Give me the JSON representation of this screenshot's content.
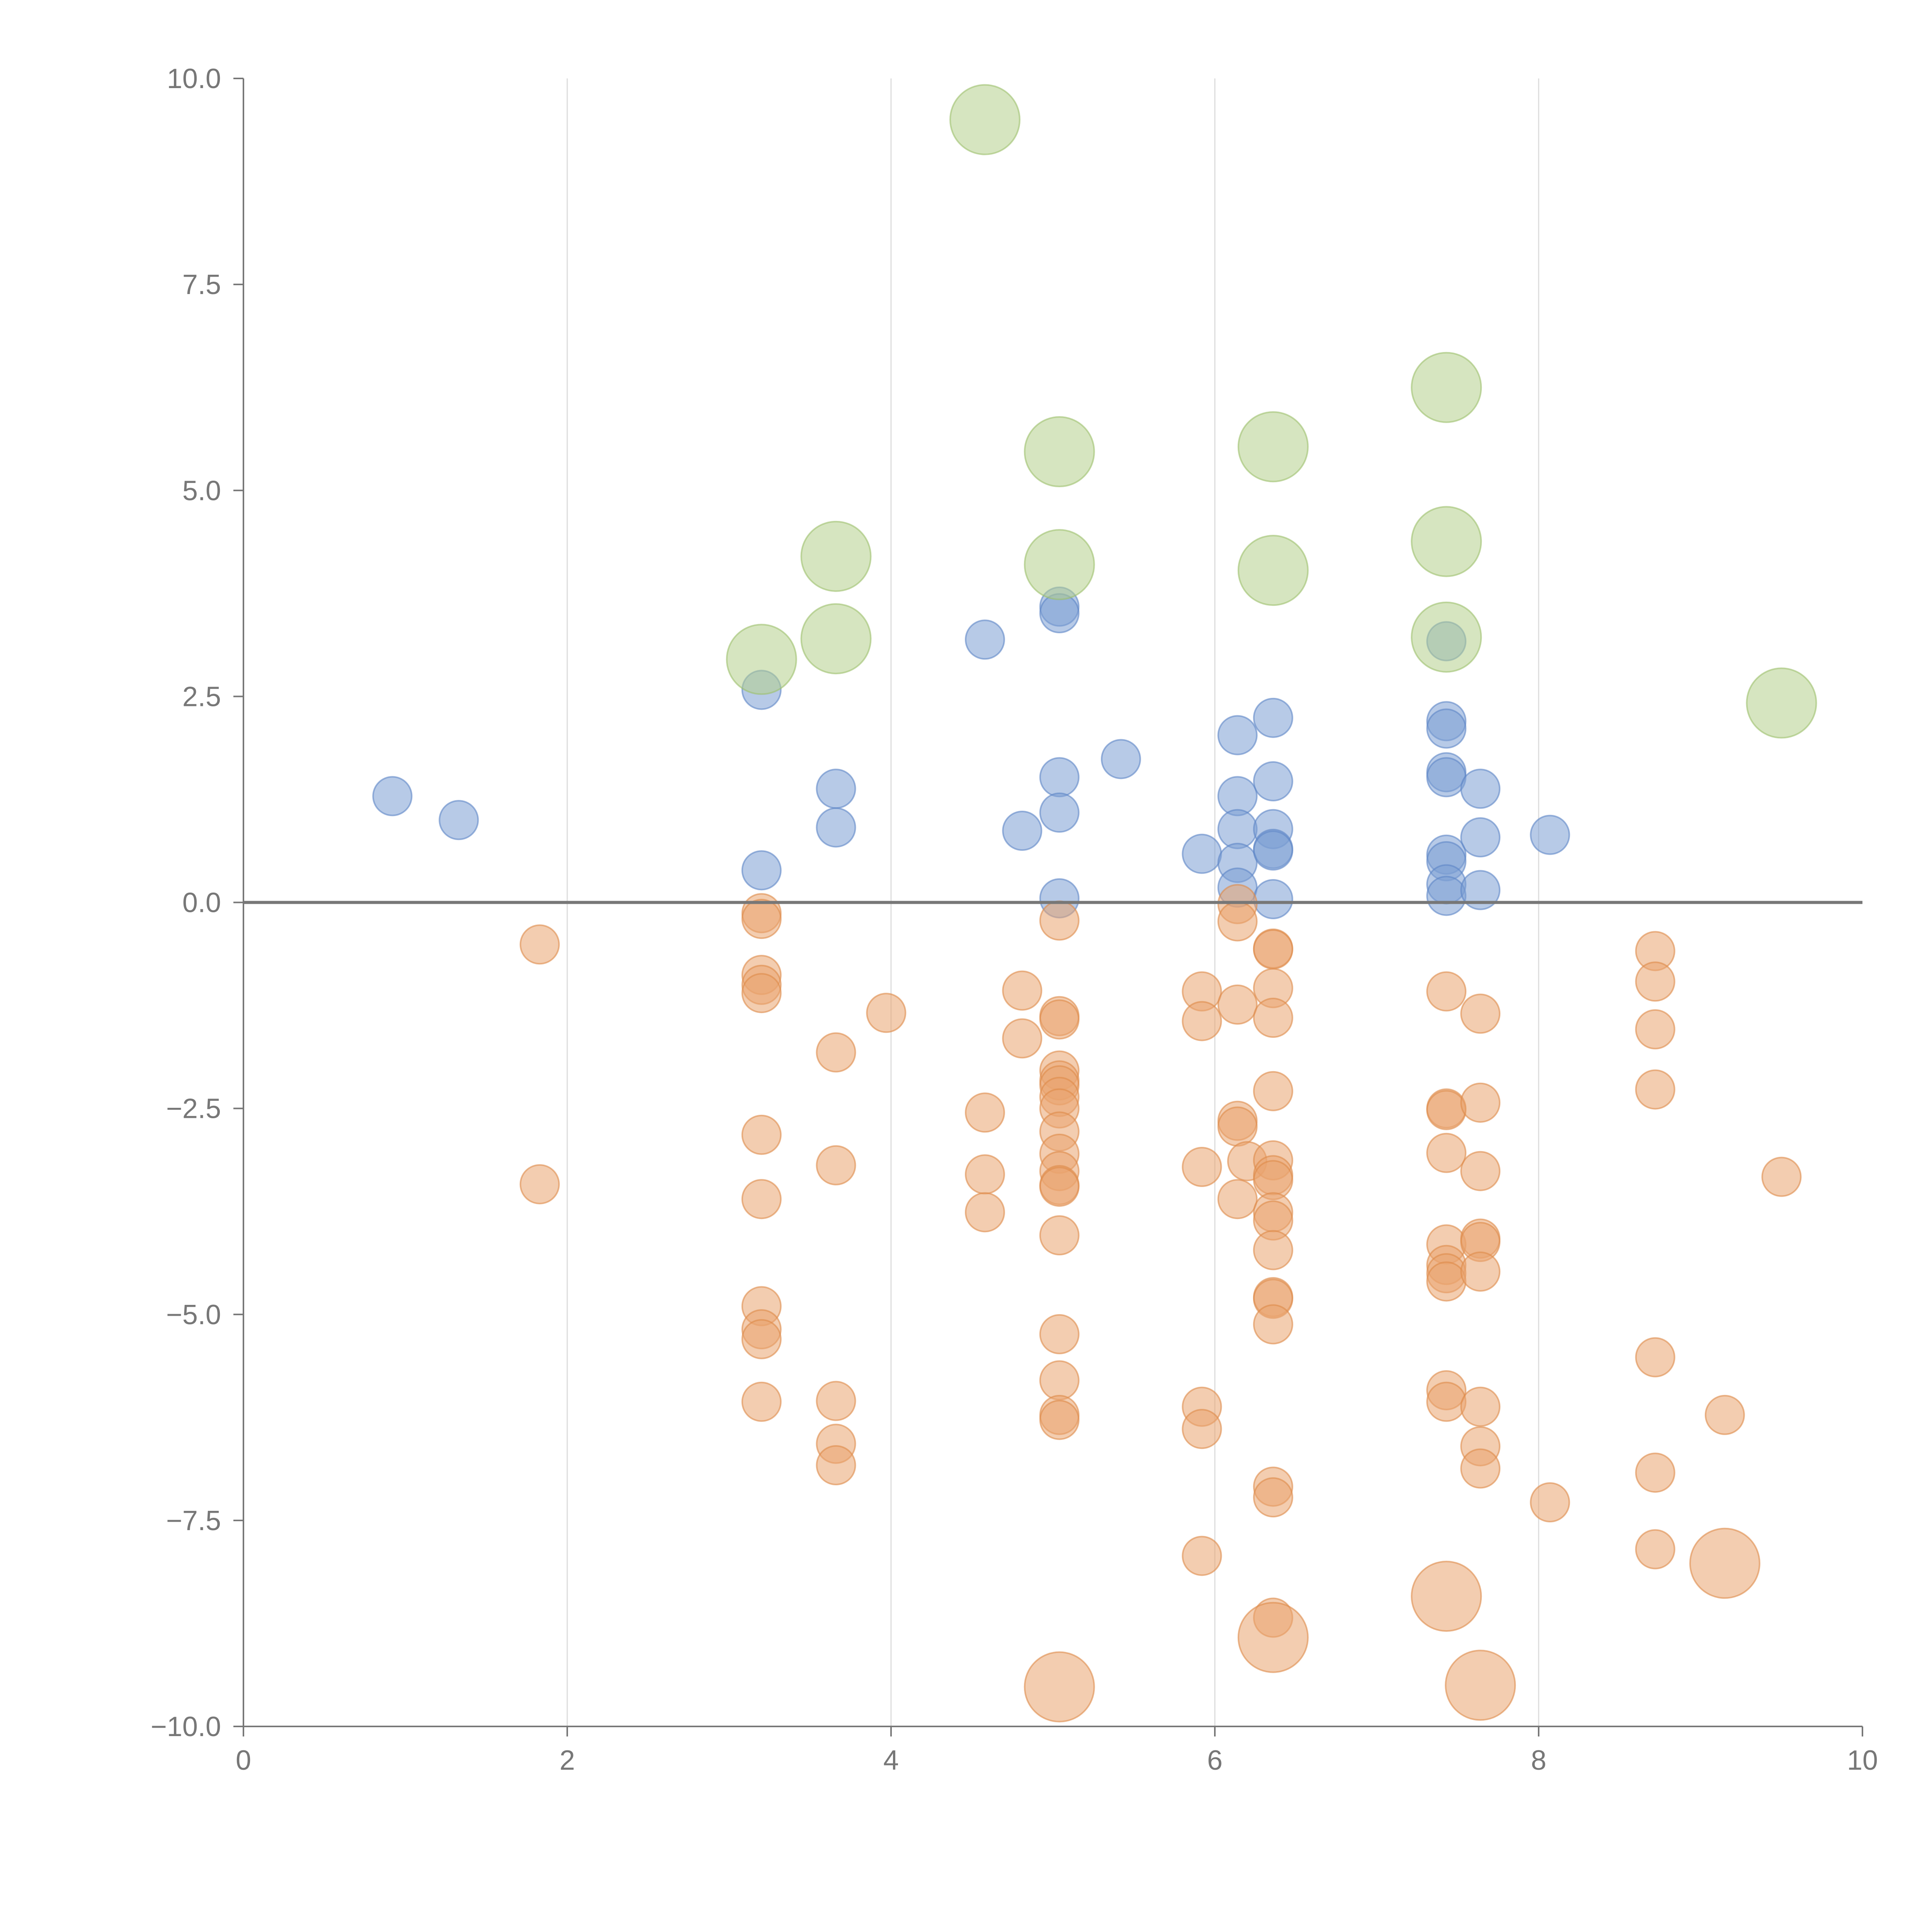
{
  "chart_data": {
    "type": "scatter",
    "title": "",
    "xlabel": "",
    "ylabel": "",
    "xlim": [
      0,
      10
    ],
    "ylim": [
      -10,
      10
    ],
    "grid": "vertical",
    "x_ticks": [
      "0",
      "2",
      "4",
      "6",
      "8",
      "10"
    ],
    "y_ticks": [
      "10.0",
      "7.5",
      "5.0",
      "2.5",
      "0.0",
      "−2.5",
      "−5.0",
      "−7.5",
      "−10.0"
    ],
    "zero_line": 0,
    "series": [
      {
        "name": "blue",
        "color": "#7b9fd4",
        "stroke": "#5d86c6",
        "size": "small",
        "points": [
          [
            0.92,
            1.29
          ],
          [
            1.33,
            1.0
          ],
          [
            3.2,
            2.58
          ],
          [
            3.2,
            0.39
          ],
          [
            3.66,
            1.38
          ],
          [
            3.66,
            0.91
          ],
          [
            4.58,
            3.19
          ],
          [
            4.81,
            0.87
          ],
          [
            5.04,
            3.59
          ],
          [
            5.04,
            3.51
          ],
          [
            5.04,
            1.52
          ],
          [
            5.04,
            1.09
          ],
          [
            5.04,
            0.05
          ],
          [
            5.42,
            1.74
          ],
          [
            5.92,
            0.59
          ],
          [
            6.14,
            2.03
          ],
          [
            6.14,
            1.29
          ],
          [
            6.14,
            0.89
          ],
          [
            6.14,
            0.48
          ],
          [
            6.14,
            0.18
          ],
          [
            6.36,
            2.24
          ],
          [
            6.36,
            1.47
          ],
          [
            6.36,
            0.89
          ],
          [
            6.36,
            0.65
          ],
          [
            6.36,
            0.63
          ],
          [
            6.36,
            0.04
          ],
          [
            7.43,
            3.17
          ],
          [
            7.43,
            2.2
          ],
          [
            7.43,
            2.11
          ],
          [
            7.43,
            1.58
          ],
          [
            7.43,
            1.52
          ],
          [
            7.43,
            0.58
          ],
          [
            7.43,
            0.5
          ],
          [
            7.43,
            0.22
          ],
          [
            7.43,
            0.08
          ],
          [
            7.64,
            1.38
          ],
          [
            7.64,
            0.79
          ],
          [
            7.64,
            0.15
          ],
          [
            8.07,
            0.82
          ]
        ]
      },
      {
        "name": "orange",
        "color": "#eaa46f",
        "stroke": "#dd8a4a",
        "size": "small",
        "points": [
          [
            1.83,
            -0.51
          ],
          [
            1.83,
            -3.42
          ],
          [
            3.2,
            -0.13
          ],
          [
            3.2,
            -0.2
          ],
          [
            3.2,
            -0.88
          ],
          [
            3.2,
            -1.0
          ],
          [
            3.2,
            -1.1
          ],
          [
            3.2,
            -2.82
          ],
          [
            3.2,
            -3.6
          ],
          [
            3.2,
            -4.9
          ],
          [
            3.2,
            -5.18
          ],
          [
            3.2,
            -5.3
          ],
          [
            3.2,
            -6.06
          ],
          [
            3.66,
            -1.82
          ],
          [
            3.66,
            -3.19
          ],
          [
            3.66,
            -6.05
          ],
          [
            3.66,
            -6.57
          ],
          [
            3.66,
            -6.83
          ],
          [
            3.97,
            -1.34
          ],
          [
            4.58,
            -2.55
          ],
          [
            4.58,
            -3.3
          ],
          [
            4.58,
            -3.76
          ],
          [
            4.81,
            -1.07
          ],
          [
            4.81,
            -1.65
          ],
          [
            5.04,
            -0.22
          ],
          [
            5.04,
            -1.38
          ],
          [
            5.04,
            -1.42
          ],
          [
            5.04,
            -2.04
          ],
          [
            5.04,
            -2.16
          ],
          [
            5.04,
            -2.22
          ],
          [
            5.04,
            -2.36
          ],
          [
            5.04,
            -2.5
          ],
          [
            5.04,
            -2.78
          ],
          [
            5.04,
            -3.05
          ],
          [
            5.04,
            -3.26
          ],
          [
            5.04,
            -3.43
          ],
          [
            5.04,
            -3.45
          ],
          [
            5.04,
            -4.04
          ],
          [
            5.04,
            -5.24
          ],
          [
            5.04,
            -5.8
          ],
          [
            5.04,
            -6.22
          ],
          [
            5.04,
            -6.28
          ],
          [
            5.92,
            -1.08
          ],
          [
            5.92,
            -1.44
          ],
          [
            5.92,
            -3.21
          ],
          [
            5.92,
            -6.12
          ],
          [
            5.92,
            -6.39
          ],
          [
            5.92,
            -7.93
          ],
          [
            6.14,
            -0.02
          ],
          [
            6.14,
            -0.23
          ],
          [
            6.14,
            -1.24
          ],
          [
            6.14,
            -2.65
          ],
          [
            6.14,
            -2.72
          ],
          [
            6.14,
            -3.6
          ],
          [
            6.2,
            -3.14
          ],
          [
            6.36,
            -0.56
          ],
          [
            6.36,
            -0.57
          ],
          [
            6.36,
            -1.04
          ],
          [
            6.36,
            -1.4
          ],
          [
            6.36,
            -2.29
          ],
          [
            6.36,
            -3.13
          ],
          [
            6.36,
            -3.31
          ],
          [
            6.36,
            -3.37
          ],
          [
            6.36,
            -3.76
          ],
          [
            6.36,
            -3.86
          ],
          [
            6.36,
            -4.22
          ],
          [
            6.36,
            -4.79
          ],
          [
            6.36,
            -4.81
          ],
          [
            6.36,
            -5.12
          ],
          [
            6.36,
            -7.09
          ],
          [
            6.36,
            -7.22
          ],
          [
            6.36,
            -8.68
          ],
          [
            7.43,
            -1.08
          ],
          [
            7.43,
            -2.5
          ],
          [
            7.43,
            -2.52
          ],
          [
            7.43,
            -3.04
          ],
          [
            7.43,
            -4.15
          ],
          [
            7.43,
            -4.4
          ],
          [
            7.43,
            -4.5
          ],
          [
            7.43,
            -4.6
          ],
          [
            7.43,
            -5.92
          ],
          [
            7.43,
            -6.06
          ],
          [
            7.64,
            -1.35
          ],
          [
            7.64,
            -2.43
          ],
          [
            7.64,
            -3.26
          ],
          [
            7.64,
            -4.08
          ],
          [
            7.64,
            -4.12
          ],
          [
            7.64,
            -4.48
          ],
          [
            7.64,
            -6.12
          ],
          [
            7.64,
            -6.6
          ],
          [
            7.64,
            -6.87
          ],
          [
            8.07,
            -7.28
          ],
          [
            8.72,
            -0.59
          ],
          [
            8.72,
            -0.96
          ],
          [
            8.72,
            -1.54
          ],
          [
            8.72,
            -2.27
          ],
          [
            8.72,
            -5.52
          ],
          [
            8.72,
            -6.92
          ],
          [
            8.72,
            -7.85
          ],
          [
            9.15,
            -6.22
          ],
          [
            9.5,
            -3.33
          ]
        ]
      },
      {
        "name": "green",
        "color": "#b4d08c",
        "stroke": "#9cc06c",
        "size": "large",
        "points": [
          [
            3.2,
            2.95
          ],
          [
            3.66,
            4.2
          ],
          [
            3.66,
            3.2
          ],
          [
            4.58,
            9.5
          ],
          [
            5.04,
            5.47
          ],
          [
            5.04,
            4.1
          ],
          [
            6.36,
            5.53
          ],
          [
            6.36,
            4.03
          ],
          [
            7.43,
            6.25
          ],
          [
            7.43,
            4.38
          ],
          [
            7.43,
            3.22
          ],
          [
            9.5,
            2.42
          ]
        ]
      },
      {
        "name": "orange-large",
        "color": "#eaa46f",
        "stroke": "#dd8a4a",
        "size": "large",
        "points": [
          [
            5.04,
            -9.52
          ],
          [
            6.36,
            -8.92
          ],
          [
            7.43,
            -8.42
          ],
          [
            7.64,
            -9.5
          ],
          [
            9.15,
            -8.02
          ]
        ]
      }
    ]
  }
}
